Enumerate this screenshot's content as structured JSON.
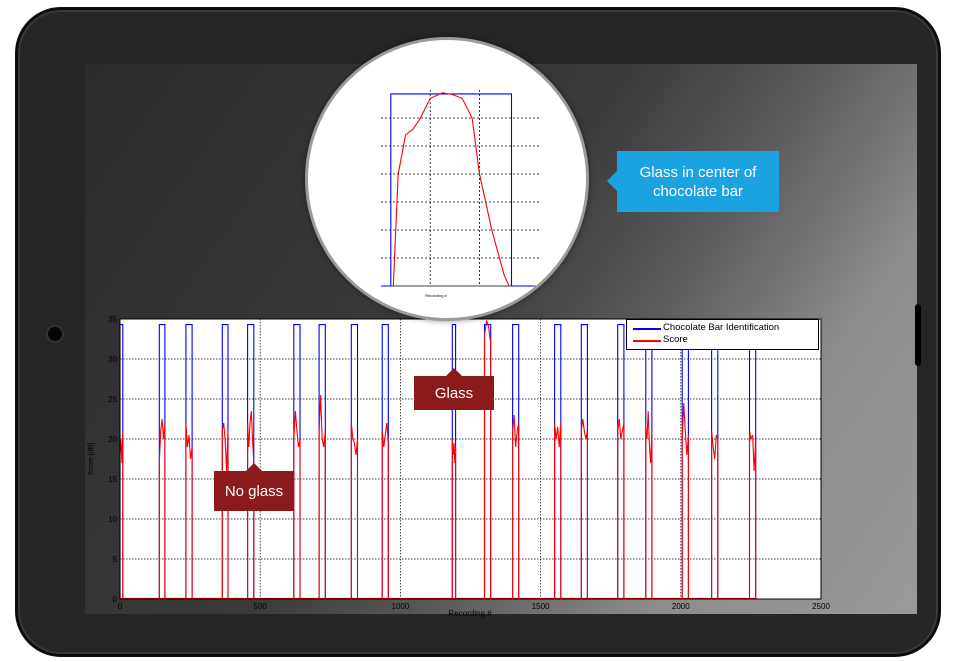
{
  "chart_data": [
    {
      "type": "line",
      "title": "",
      "xlabel": "Recording #",
      "ylabel": "Score [dB]",
      "xlim": [
        0,
        2500
      ],
      "ylim": [
        0,
        35
      ],
      "x_ticks": [
        0,
        500,
        1000,
        1500,
        2000,
        2500
      ],
      "y_ticks": [
        0,
        5,
        10,
        15,
        20,
        25,
        30,
        35
      ],
      "grid": true,
      "legend_position": "top-right",
      "series": [
        {
          "name": "Chocolate Bar Identification",
          "color": "#0000ff",
          "level": 34.3,
          "segments_x": [
            [
              0,
              10
            ],
            [
              140,
              160
            ],
            [
              235,
              257
            ],
            [
              365,
              385
            ],
            [
              455,
              477
            ],
            [
              620,
              642
            ],
            [
              710,
              732
            ],
            [
              825,
              847
            ],
            [
              935,
              957
            ],
            [
              1185,
              1197
            ],
            [
              1300,
              1322
            ],
            [
              1400,
              1422
            ],
            [
              1550,
              1572
            ],
            [
              1645,
              1667
            ],
            [
              1775,
              1797
            ],
            [
              1875,
              1897
            ],
            [
              2005,
              2027
            ],
            [
              2110,
              2132
            ],
            [
              2245,
              2267
            ]
          ]
        },
        {
          "name": "Score",
          "color": "#ff0000",
          "segment_values": [
            [
              18,
              20,
              17,
              21
            ],
            [
              17,
              21,
              22.5,
              20,
              22
            ],
            [
              22,
              19,
              20.5,
              17.5,
              19
            ],
            [
              21,
              22,
              20,
              16,
              21
            ],
            [
              22,
              19,
              22,
              23.5,
              20,
              17
            ],
            [
              20,
              23.5,
              21,
              19,
              20
            ],
            [
              21,
              25.5,
              20,
              19,
              21
            ],
            [
              22,
              20,
              19.5,
              18,
              20
            ],
            [
              21,
              19,
              20.5,
              22,
              19.5
            ],
            [
              20,
              18,
              19.5,
              17,
              19
            ],
            [
              33,
              34.8,
              34,
              32
            ],
            [
              21,
              23,
              19,
              21,
              22
            ],
            [
              22,
              20,
              21.5,
              19,
              22
            ],
            [
              21,
              22.5,
              21,
              20,
              21
            ],
            [
              21,
              22.5,
              20,
              21,
              22
            ],
            [
              21.5,
              20,
              23.5,
              19,
              17,
              21
            ],
            [
              20,
              24.5,
              21,
              18,
              20.5
            ],
            [
              21,
              19,
              17.5,
              20.5,
              20
            ],
            [
              21,
              20,
              20.5,
              16,
              20
            ],
            [
              20,
              21,
              19.5,
              21
            ]
          ]
        }
      ]
    },
    {
      "type": "line",
      "title": "",
      "xlabel": "Recording #",
      "ylabel": "",
      "note": "zoomed inset (magnifier) around the glass event",
      "xlim": [
        1160,
        1225
      ],
      "ylim": [
        0,
        35
      ],
      "series": [
        {
          "name": "Chocolate Bar Identification",
          "color": "#0000ff",
          "values_x": [
            1160,
            1164,
            1164,
            1213,
            1213,
            1222
          ],
          "values_y": [
            0,
            0,
            34.3,
            34.3,
            0,
            0
          ]
        },
        {
          "name": "Score",
          "color": "#ff0000",
          "values_x": [
            1165,
            1167,
            1170,
            1173,
            1176,
            1180,
            1185,
            1189,
            1193,
            1197,
            1200,
            1205,
            1210,
            1212
          ],
          "values_y": [
            0,
            20,
            27,
            28,
            30,
            33.5,
            34.5,
            34.2,
            33.5,
            30,
            20,
            10,
            2,
            0
          ]
        }
      ]
    }
  ],
  "callouts": {
    "glass": "Glass",
    "no_glass": "No glass",
    "center": "Glass in center of chocolate bar"
  },
  "colors": {
    "callout_dark": "#8b1a1a",
    "callout_blue": "#1aa3e0",
    "bezel": "#262626"
  }
}
